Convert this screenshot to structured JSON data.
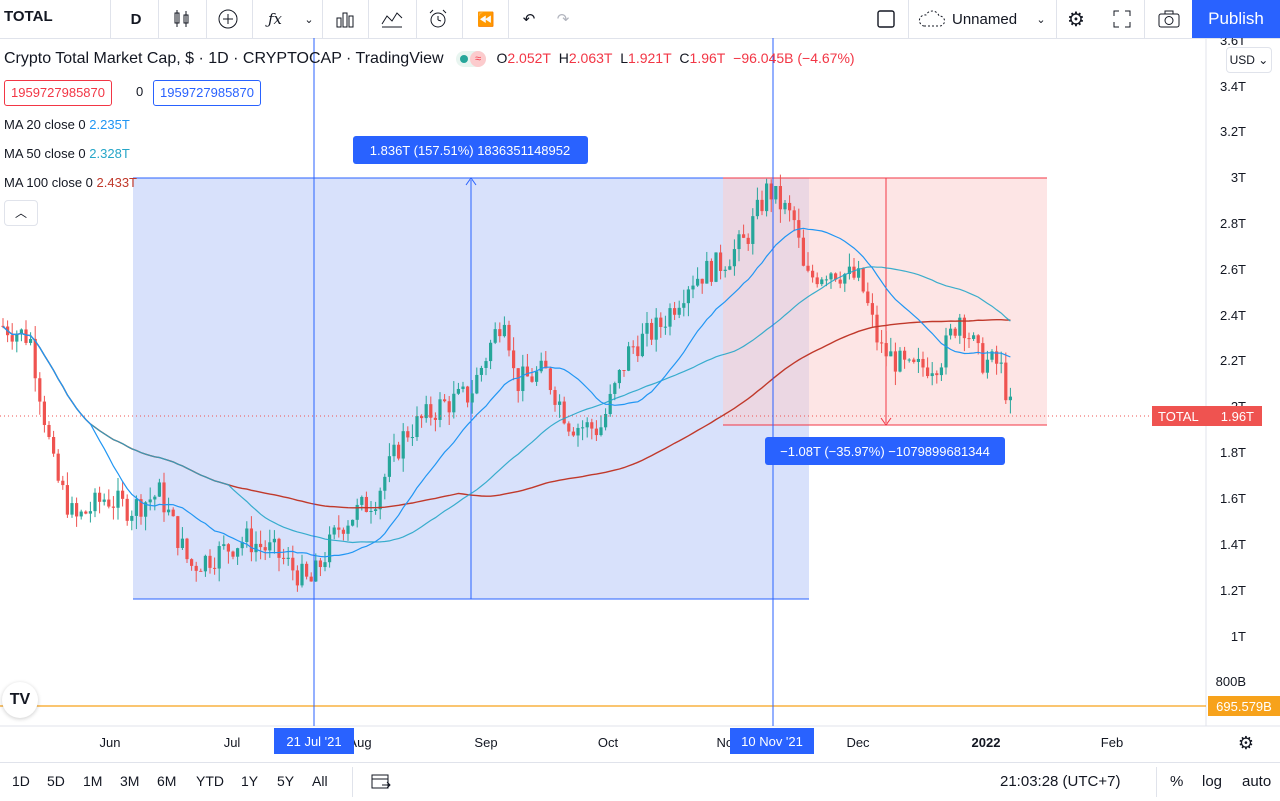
{
  "toolbar": {
    "symbol": "TOTAL",
    "interval": "D",
    "layout_name": "Unnamed",
    "publish_label": "Publish"
  },
  "legend": {
    "title": "Crypto Total Market Cap, $ · 1D · CRYPTOCAP · TradingView",
    "open_label": "O",
    "open": "2.052T",
    "high_label": "H",
    "high": "2.063T",
    "low_label": "L",
    "low": "1.921T",
    "close_label": "C",
    "close": "1.96T",
    "change": "−96.045B (−4.67%)",
    "value_left": "1959727985870",
    "value_mid": "0",
    "value_right": "1959727985870"
  },
  "indicators": [
    {
      "label": "MA 20 close 0",
      "value": "2.235T",
      "color": "#2196f3"
    },
    {
      "label": "MA 50 close 0",
      "value": "2.328T",
      "color": "#26a6c8"
    },
    {
      "label": "MA 100 close 0",
      "value": "2.433T",
      "color": "#c0392b"
    }
  ],
  "price_axis": {
    "currency": "USD",
    "ticks": [
      "3.6T",
      "3.4T",
      "3.2T",
      "3T",
      "2.8T",
      "2.6T",
      "2.4T",
      "2.2T",
      "2T",
      "1.8T",
      "1.6T",
      "1.4T",
      "1.2T",
      "1T",
      "800B"
    ],
    "last_price_label": "TOTAL",
    "last_price": "1.96T",
    "horizontal_line_price": "695.579B"
  },
  "time_axis": {
    "ticks": [
      "Jun",
      "Jul",
      "Aug",
      "Sep",
      "Oct",
      "Nov",
      "Dec",
      "2022",
      "Feb"
    ],
    "crosshair_1": "21 Jul '21",
    "crosshair_2": "10 Nov '21"
  },
  "measurements": {
    "rise": "1.836T (157.51%) 1836351148952",
    "fall": "−1.08T (−35.97%) −1079899681344"
  },
  "bottom": {
    "ranges": [
      "1D",
      "5D",
      "1M",
      "3M",
      "6M",
      "YTD",
      "1Y",
      "5Y",
      "All"
    ],
    "time": "21:03:28 (UTC+7)",
    "percent": "%",
    "log": "log",
    "auto": "auto"
  },
  "colors": {
    "up": "#26a69a",
    "down": "#ef5350",
    "accent": "#2962ff",
    "range_blue": "#d1dcfa",
    "range_red": "#fde3e3"
  }
}
